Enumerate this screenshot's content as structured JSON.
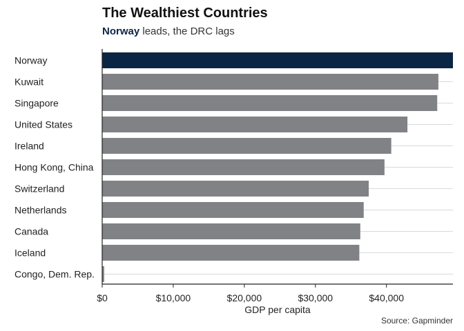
{
  "chart_data": {
    "type": "bar",
    "orientation": "horizontal",
    "title": "The Wealthiest Countries",
    "subtitle_highlight": "Norway",
    "subtitle_rest": " leads, the DRC lags",
    "xlabel": "GDP per capita",
    "source": "Source: Gapminder",
    "categories": [
      "Norway",
      "Kuwait",
      "Singapore",
      "United States",
      "Ireland",
      "Hong Kong, China",
      "Switzerland",
      "Netherlands",
      "Canada",
      "Iceland",
      "Congo, Dem. Rep."
    ],
    "values": [
      49357,
      47307,
      47143,
      42952,
      40676,
      39725,
      37506,
      36798,
      36319,
      36181,
      278
    ],
    "highlight": "Norway",
    "xlim": [
      0,
      49357
    ],
    "xticks": [
      0,
      10000,
      20000,
      30000,
      40000
    ],
    "xtick_labels": [
      "$0",
      "$10,000",
      "$20,000",
      "$30,000",
      "$40,000"
    ],
    "colors": {
      "highlight": "#0b2645",
      "bar": "#808285",
      "grid": "#d9d9d9",
      "axis": "#222222"
    }
  }
}
